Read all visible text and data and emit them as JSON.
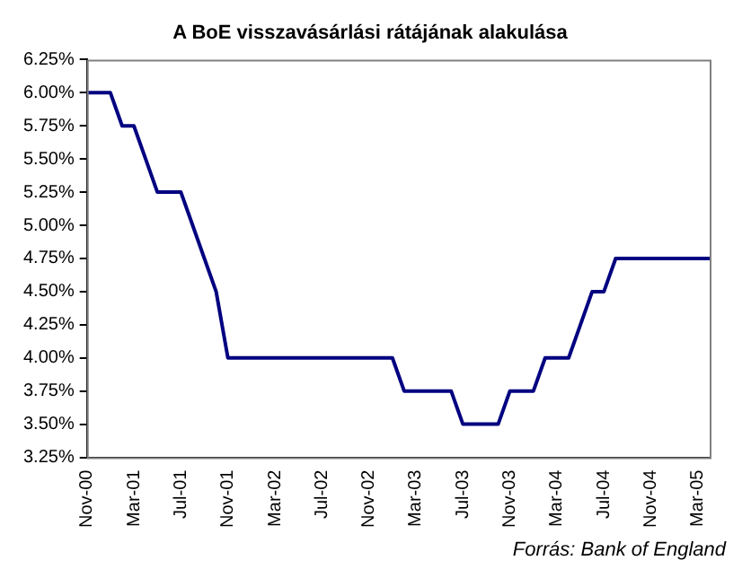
{
  "chart_data": {
    "type": "line",
    "title": "A BoE visszavásárlási rátájának alakulása",
    "categories": [
      "Nov-00",
      null,
      null,
      null,
      "Mar-01",
      null,
      null,
      null,
      "Jul-01",
      null,
      null,
      null,
      "Nov-01",
      null,
      null,
      null,
      "Mar-02",
      null,
      null,
      null,
      "Jul-02",
      null,
      null,
      null,
      "Nov-02",
      null,
      null,
      null,
      "Mar-03",
      null,
      null,
      null,
      "Jul-03",
      null,
      null,
      null,
      "Nov-03",
      null,
      null,
      null,
      "Mar-04",
      null,
      null,
      null,
      "Jul-04",
      null,
      null,
      null,
      "Nov-04",
      null,
      null,
      null,
      "Mar-05",
      null
    ],
    "series": [
      {
        "color": "#000080",
        "values": [
          6,
          6,
          6,
          5.75,
          5.75,
          5.5,
          5.25,
          5.25,
          5.25,
          5,
          4.75,
          4.5,
          4,
          4,
          4,
          4,
          4,
          4,
          4,
          4,
          4,
          4,
          4,
          4,
          4,
          4,
          4,
          3.75,
          3.75,
          3.75,
          3.75,
          3.75,
          3.5,
          3.5,
          3.5,
          3.5,
          3.75,
          3.75,
          3.75,
          4,
          4,
          4,
          4.25,
          4.5,
          4.5,
          4.75,
          4.75,
          4.75,
          4.75,
          4.75,
          4.75,
          4.75,
          4.75,
          4.75
        ]
      }
    ],
    "ylim": [
      3.25,
      6.25
    ],
    "yticks": [
      {
        "value": 3.25,
        "label": "3.25%"
      },
      {
        "value": 3.5,
        "label": "3.50%"
      },
      {
        "value": 3.75,
        "label": "3.75%"
      },
      {
        "value": 4,
        "label": "4.00%"
      },
      {
        "value": 4.25,
        "label": "4.25%"
      },
      {
        "value": 4.5,
        "label": "4.50%"
      },
      {
        "value": 4.75,
        "label": "4.75%"
      },
      {
        "value": 5,
        "label": "5.00%"
      },
      {
        "value": 5.25,
        "label": "5.25%"
      },
      {
        "value": 5.5,
        "label": "5.50%"
      },
      {
        "value": 5.75,
        "label": "5.75%"
      },
      {
        "value": 6,
        "label": "6.00%"
      },
      {
        "value": 6.25,
        "label": "6.25%"
      }
    ],
    "grid": false,
    "legend": false,
    "marker": "none",
    "line_style": "solid",
    "annotations": [
      "Forrás: Bank of England"
    ]
  }
}
